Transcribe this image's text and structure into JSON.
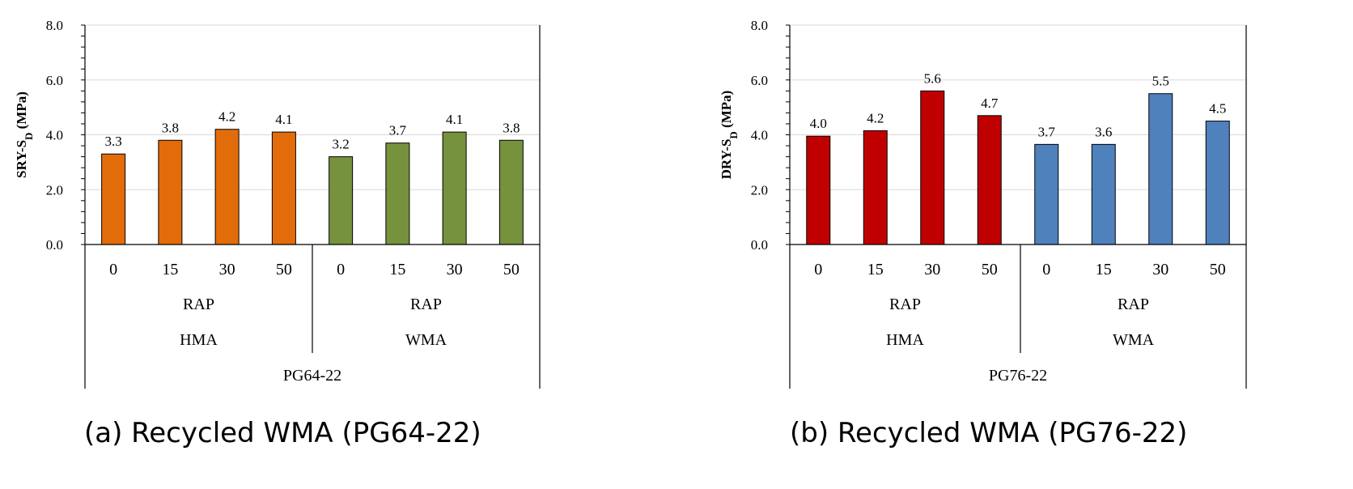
{
  "chart_data": [
    {
      "type": "bar",
      "caption": "(a) Recycled WMA (PG64-22)",
      "ylabel_main": "SRY-S",
      "ylabel_sub": "D",
      "ylabel_unit": " (MPa)",
      "ylim": [
        0,
        8
      ],
      "yticks": [
        "0.0",
        "2.0",
        "4.0",
        "6.0",
        "8.0"
      ],
      "grid": true,
      "categories": [
        "0",
        "15",
        "30",
        "50",
        "0",
        "15",
        "30",
        "50"
      ],
      "values": [
        3.3,
        3.8,
        4.2,
        4.1,
        3.2,
        3.7,
        4.1,
        3.8
      ],
      "data_labels": [
        "3.3",
        "3.8",
        "4.2",
        "4.1",
        "3.2",
        "3.7",
        "4.1",
        "3.8"
      ],
      "groups": [
        {
          "rap_label": "RAP",
          "name": "HMA",
          "color": "#E36C0A"
        },
        {
          "rap_label": "RAP",
          "name": "WMA",
          "color": "#76923C"
        }
      ],
      "binder": "PG64-22"
    },
    {
      "type": "bar",
      "caption": "(b) Recycled WMA (PG76-22)",
      "ylabel_main": "DRY-S",
      "ylabel_sub": "D",
      "ylabel_unit": " (MPa)",
      "ylim": [
        0,
        8
      ],
      "yticks": [
        "0.0",
        "2.0",
        "4.0",
        "6.0",
        "8.0"
      ],
      "grid": true,
      "categories": [
        "0",
        "15",
        "30",
        "50",
        "0",
        "15",
        "30",
        "50"
      ],
      "values": [
        3.95,
        4.15,
        5.6,
        4.7,
        3.65,
        3.65,
        5.5,
        4.5
      ],
      "data_labels": [
        "4.0",
        "4.2",
        "5.6",
        "4.7",
        "3.7",
        "3.6",
        "5.5",
        "4.5"
      ],
      "groups": [
        {
          "rap_label": "RAP",
          "name": "HMA",
          "color": "#C00000"
        },
        {
          "rap_label": "RAP",
          "name": "WMA",
          "color": "#4F81BD"
        }
      ],
      "binder": "PG76-22"
    }
  ]
}
